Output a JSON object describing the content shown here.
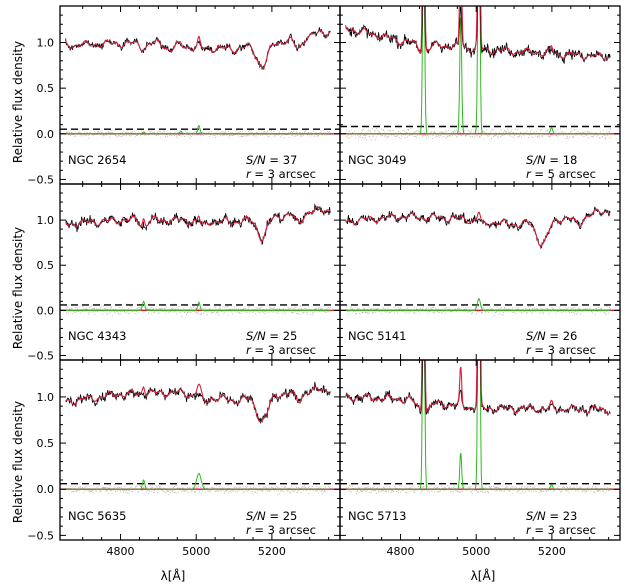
{
  "chart_data": {
    "type": "line",
    "layout": "3x2 grid of spectral panels",
    "xlabel": "λ[Å]",
    "ylabel": "Relative flux density",
    "xlim": [
      4640,
      5380
    ],
    "ylim": [
      -0.55,
      1.4
    ],
    "xticks": [
      4800,
      5000,
      5200
    ],
    "yticks": [
      -0.5,
      0.0,
      0.5,
      1.0
    ],
    "xtick_labels": [
      "4800",
      "5000",
      "5200"
    ],
    "ytick_labels": [
      "−0.5",
      "0.0",
      "0.5",
      "1.0"
    ],
    "colors": {
      "observed": "#000000",
      "best_fit": "#d81e3c",
      "emission": "#2fb81e",
      "residuals": "#b4b4b4",
      "zero_line": "#d81e3c",
      "threshold": "#000000"
    },
    "grid": false,
    "panels": [
      {
        "name": "NGC 2654",
        "sn_label": "S/N",
        "sn": "37",
        "r_label": "r",
        "r": "3 arcsec",
        "continuum": [
          [
            4660,
            0.97
          ],
          [
            4800,
            0.99
          ],
          [
            4900,
            0.99
          ],
          [
            5000,
            0.94
          ],
          [
            5100,
            0.93
          ],
          [
            5250,
            1.03
          ],
          [
            5350,
            1.12
          ]
        ],
        "absorption": [
          [
            5175,
            0.24,
            14
          ],
          [
            5270,
            0.12,
            9
          ],
          [
            4861,
            0.06,
            8
          ],
          [
            4930,
            0.05,
            10
          ]
        ],
        "emission": [
          [
            4861,
            0.02,
            3
          ],
          [
            5007,
            0.09,
            3
          ],
          [
            4959,
            0.03,
            3
          ]
        ],
        "noise": 0.035,
        "threshold": 0.05
      },
      {
        "name": "NGC 3049",
        "sn_label": "S/N",
        "sn": "18",
        "r_label": "r",
        "r": "5 arcsec",
        "continuum": [
          [
            4660,
            1.15
          ],
          [
            4800,
            1.02
          ],
          [
            5000,
            0.93
          ],
          [
            5200,
            0.88
          ],
          [
            5350,
            0.84
          ]
        ],
        "absorption": [
          [
            4861,
            0.1,
            14
          ]
        ],
        "emission": [
          [
            4861,
            2.5,
            2.5
          ],
          [
            4959,
            1.3,
            2.5
          ],
          [
            5007,
            3.5,
            2.5
          ],
          [
            5199,
            0.07,
            3
          ]
        ],
        "noise": 0.055,
        "threshold": 0.08
      },
      {
        "name": "NGC 4343",
        "sn_label": "S/N",
        "sn": "25",
        "r_label": "r",
        "r": "3 arcsec",
        "continuum": [
          [
            4660,
            0.96
          ],
          [
            4800,
            1.0
          ],
          [
            4950,
            1.0
          ],
          [
            5100,
            0.98
          ],
          [
            5250,
            1.06
          ],
          [
            5350,
            1.12
          ]
        ],
        "absorption": [
          [
            5175,
            0.22,
            12
          ],
          [
            5270,
            0.1,
            9
          ],
          [
            4861,
            0.08,
            8
          ],
          [
            5015,
            0.06,
            10
          ]
        ],
        "emission": [
          [
            4861,
            0.1,
            3
          ],
          [
            5007,
            0.09,
            3
          ]
        ],
        "noise": 0.05,
        "threshold": 0.06
      },
      {
        "name": "NGC 5141",
        "sn_label": "S/N",
        "sn": "26",
        "r_label": "r",
        "r": "3 arcsec",
        "continuum": [
          [
            4660,
            0.99
          ],
          [
            4800,
            1.04
          ],
          [
            4950,
            1.02
          ],
          [
            5100,
            0.95
          ],
          [
            5250,
            1.03
          ],
          [
            5350,
            1.1
          ]
        ],
        "absorption": [
          [
            5175,
            0.25,
            15
          ],
          [
            5270,
            0.1,
            10
          ],
          [
            5015,
            0.05,
            10
          ]
        ],
        "emission": [
          [
            5007,
            0.13,
            4
          ]
        ],
        "noise": 0.04,
        "threshold": 0.06
      },
      {
        "name": "NGC 5635",
        "sn_label": "S/N",
        "sn": "25",
        "r_label": "r",
        "r": "3 arcsec",
        "continuum": [
          [
            4660,
            0.95
          ],
          [
            4800,
            1.03
          ],
          [
            4950,
            1.05
          ],
          [
            5100,
            0.96
          ],
          [
            5250,
            1.05
          ],
          [
            5350,
            1.08
          ]
        ],
        "absorption": [
          [
            5175,
            0.26,
            15
          ],
          [
            5270,
            0.1,
            9
          ],
          [
            5015,
            0.08,
            12
          ]
        ],
        "emission": [
          [
            4861,
            0.1,
            3
          ],
          [
            5007,
            0.17,
            6
          ]
        ],
        "noise": 0.045,
        "threshold": 0.06
      },
      {
        "name": "NGC 5713",
        "sn_label": "S/N",
        "sn": "23",
        "r_label": "r",
        "r": "3 arcsec",
        "continuum": [
          [
            4660,
            1.0
          ],
          [
            4800,
            0.98
          ],
          [
            5000,
            0.88
          ],
          [
            5200,
            0.87
          ],
          [
            5350,
            0.86
          ]
        ],
        "absorption": [
          [
            4861,
            0.12,
            14
          ]
        ],
        "emission": [
          [
            4861,
            3.0,
            2.5
          ],
          [
            4959,
            0.4,
            2.5
          ],
          [
            5007,
            4.5,
            2.5
          ],
          [
            5199,
            0.05,
            3
          ]
        ],
        "noise": 0.04,
        "threshold": 0.06
      }
    ]
  }
}
